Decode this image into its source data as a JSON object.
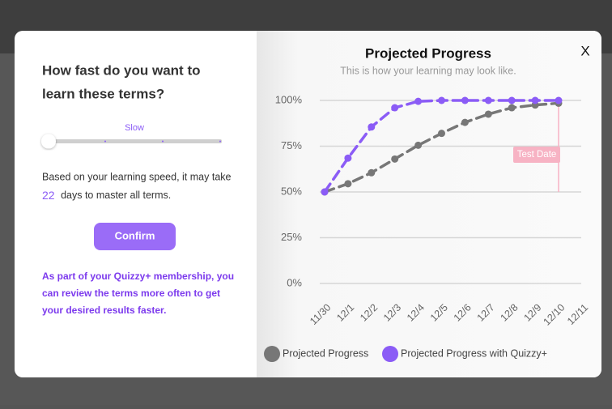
{
  "dialog": {
    "question_lines": [
      "How fast do you want to",
      "learn these terms?"
    ],
    "slider_label": "Slow",
    "estimate_before": "Based on your learning speed, it may take",
    "estimate_days": 22,
    "estimate_after": "days to master all terms.",
    "button": "Confirm",
    "note_lines": [
      "As part of your Quizzy+ membership, you",
      "can review the terms more often to get",
      "your desired results faster."
    ],
    "close": "X"
  },
  "chart_data": {
    "type": "line",
    "title": "Projected Progress",
    "subtitle": "This is how your learning may look like.",
    "categories": [
      "11/30",
      "12/1",
      "12/2",
      "12/3",
      "12/4",
      "12/5",
      "12/6",
      "12/7",
      "12/8",
      "12/9",
      "12/10",
      "12/11"
    ],
    "series": [
      {
        "name": "Projected Progress",
        "color": "#777777",
        "values": [
          50,
          54.5,
          60.5,
          68,
          75.5,
          82,
          88,
          92.5,
          96,
          97.5,
          98.5,
          null
        ]
      },
      {
        "name": "Projected Progress with Quizzy+",
        "color": "#8b5cf6",
        "values": [
          50,
          68.5,
          85.5,
          96,
          99.5,
          100,
          100,
          100,
          100,
          100,
          100,
          null
        ]
      }
    ],
    "ylim": [
      0,
      100
    ],
    "yticks": [
      {
        "value": 0,
        "label": "0%"
      },
      {
        "value": 25,
        "label": "25%"
      },
      {
        "value": 50,
        "label": "50%"
      },
      {
        "value": 75,
        "label": "75%"
      },
      {
        "value": 100,
        "label": "100%"
      }
    ],
    "grid": true,
    "annotation": {
      "text": "Test Date",
      "x": "12/10",
      "color": "#f7b3c4"
    }
  }
}
